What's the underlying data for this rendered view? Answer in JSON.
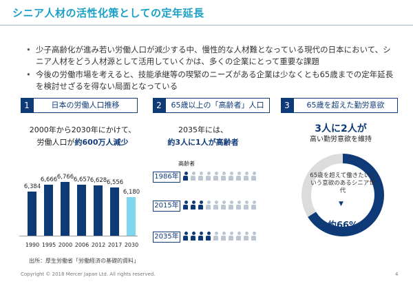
{
  "title": "シニア人材の活性化策としての定年延長",
  "bullets": [
    "少子高齢化が進み若い労働人口が減少する中、慢性的な人材難となっている現代の日本において、シニア人材をどう人材源として活用していくかは、多くの企業にとって重要な課題",
    "今後の労働市場を考えると、技能承継等の喫緊のニーズがある企業は少なくとも65歳までの定年延長を検討せざるを得ない局面となっている"
  ],
  "sections": [
    {
      "num": "1",
      "label": "日本の労働人口推移"
    },
    {
      "num": "2",
      "label": "65歳以上の「高齢者」人口"
    },
    {
      "num": "3",
      "label": "65歳を超えた勤労意欲"
    }
  ],
  "section1": {
    "line1": "2000年から2030年にかけて、",
    "line2_prefix": "労働人口が",
    "line2_emph": "約600万人減少",
    "source": "出所：厚生労働省「労働経済の基礎的資料」"
  },
  "chart_data": {
    "type": "bar",
    "categories": [
      "1990",
      "1995",
      "2000",
      "2006",
      "2012",
      "2017",
      "2030"
    ],
    "values": [
      6384,
      6666,
      6766,
      6657,
      6628,
      6556,
      6180
    ],
    "value_labels": [
      "6,384",
      "6,666",
      "6,766",
      "6,657",
      "6,628",
      "6,556",
      "6,180"
    ],
    "highlight_index": 6,
    "colors": {
      "bar": "#0f3a78",
      "highlight": "#7fd6ef"
    }
  },
  "section2": {
    "line1": "2035年には、",
    "line2": "約3人に1人が高齢者",
    "legend": "高齢者",
    "rows": [
      {
        "year": "1986年",
        "senior": 1,
        "total": 10
      },
      {
        "year": "2015年",
        "senior": 3,
        "total": 10
      },
      {
        "year": "2035年",
        "senior": 4,
        "total": 10
      }
    ],
    "colors": {
      "senior": "#0f3a78",
      "other": "#bcc6d2"
    }
  },
  "section3": {
    "headline": "3人に2人が",
    "sub": "高い勤労意欲を維持",
    "donut_text": "65歳を超えて働きたいという意欲のあるシニア世代",
    "arrow": "▼",
    "percent": "約66%",
    "percent_value": 66
  },
  "footer": {
    "copyright": "Copyright © 2018 Mercer Japan Ltd. All rights reserved.",
    "page": "4"
  }
}
